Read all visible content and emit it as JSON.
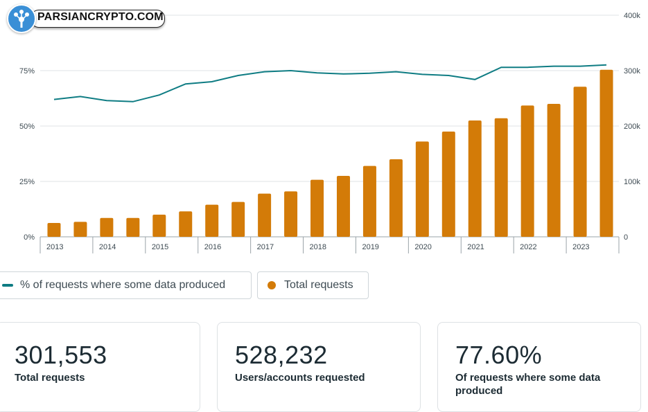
{
  "logo": {
    "text": "PARSIANCRYPTO.COM"
  },
  "chart_data": {
    "type": "bar+line",
    "categories": [
      "2013a",
      "2013b",
      "2014a",
      "2014b",
      "2015a",
      "2015b",
      "2016a",
      "2016b",
      "2017a",
      "2017b",
      "2018a",
      "2018b",
      "2019a",
      "2019b",
      "2020a",
      "2020b",
      "2021a",
      "2021b",
      "2022a",
      "2022b",
      "2023a",
      "2023b"
    ],
    "x_tick_labels": [
      "2013",
      "2014",
      "2015",
      "2016",
      "2017",
      "2018",
      "2019",
      "2020",
      "2021",
      "2022",
      "2023"
    ],
    "series": [
      {
        "name": "Total requests",
        "axis": "right",
        "kind": "bar",
        "color": "#d37b08",
        "values": [
          25000,
          27000,
          34000,
          34000,
          40000,
          46000,
          58000,
          63000,
          78000,
          82000,
          103000,
          110000,
          128000,
          140000,
          172000,
          190000,
          210000,
          214000,
          237000,
          240000,
          271000,
          301553
        ]
      },
      {
        "name": "% of requests where some data produced",
        "axis": "left",
        "kind": "line",
        "color": "#0e7c83",
        "values": [
          62.0,
          63.3,
          61.5,
          61.0,
          64.0,
          69.0,
          70.0,
          72.8,
          74.5,
          75.0,
          74.0,
          73.5,
          73.8,
          74.5,
          73.3,
          72.8,
          71.0,
          76.5,
          76.5,
          77.0,
          77.0,
          77.6
        ]
      }
    ],
    "y_left": {
      "ticks": [
        "0%",
        "25%",
        "50%",
        "75%"
      ],
      "range": [
        0,
        100
      ]
    },
    "y_right": {
      "ticks": [
        "0",
        "100k",
        "200k",
        "300k",
        "400k"
      ],
      "range": [
        0,
        400000
      ]
    },
    "grid": true
  },
  "legend": {
    "line_label": "% of requests where some data produced",
    "bar_label": "Total requests"
  },
  "stats": [
    {
      "value": "301,553",
      "label": "Total requests"
    },
    {
      "value": "528,232",
      "label": "Users/accounts requested"
    },
    {
      "value": "77.60%",
      "label": "Of requests where some data produced"
    }
  ]
}
